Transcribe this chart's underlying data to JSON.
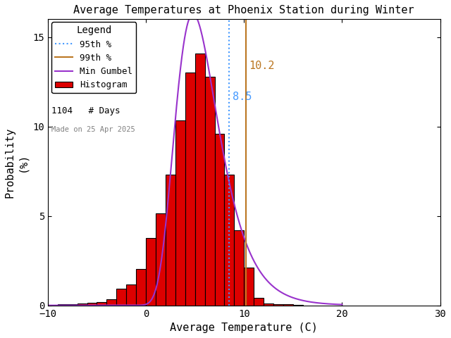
{
  "title": "Average Temperatures at Phoenix Station during Winter",
  "xlabel": "Average Temperature (C)",
  "ylabel": "Probability\n(%)",
  "xlim": [
    -10,
    30
  ],
  "ylim": [
    0,
    16
  ],
  "xticks": [
    -10,
    0,
    10,
    20,
    30
  ],
  "yticks": [
    0,
    5,
    10,
    15
  ],
  "bar_edges": [
    -9,
    -8,
    -7,
    -6,
    -5,
    -4,
    -3,
    -2,
    -1,
    0,
    1,
    2,
    3,
    4,
    5,
    6,
    7,
    8,
    9,
    10,
    11,
    12,
    13,
    14,
    15
  ],
  "bar_heights": [
    0.05,
    0.05,
    0.1,
    0.15,
    0.2,
    0.35,
    0.95,
    1.15,
    2.05,
    3.75,
    5.15,
    7.3,
    10.35,
    13.0,
    14.1,
    12.8,
    9.6,
    7.3,
    4.2,
    2.1,
    0.4,
    0.1,
    0.05,
    0.05,
    0.02
  ],
  "bar_color": "#dd0000",
  "bar_edgecolor": "#000000",
  "gumbel_mu": 4.8,
  "gumbel_beta": 2.2,
  "gumbel_peak": 16.3,
  "percentile_95": 8.5,
  "percentile_99": 10.2,
  "n_days": 1104,
  "made_on": "Made on 25 Apr 2025",
  "background_color": "#ffffff",
  "plot_bg_color": "#ffffff",
  "gumbel_color": "#9933cc",
  "p95_color": "#4499ff",
  "p99_color": "#bb7722",
  "legend_title": "Legend",
  "annotation_95": "8.5",
  "annotation_99": "10.2",
  "title_fontsize": 11,
  "axis_fontsize": 11,
  "tick_fontsize": 10,
  "legend_fontsize": 9
}
